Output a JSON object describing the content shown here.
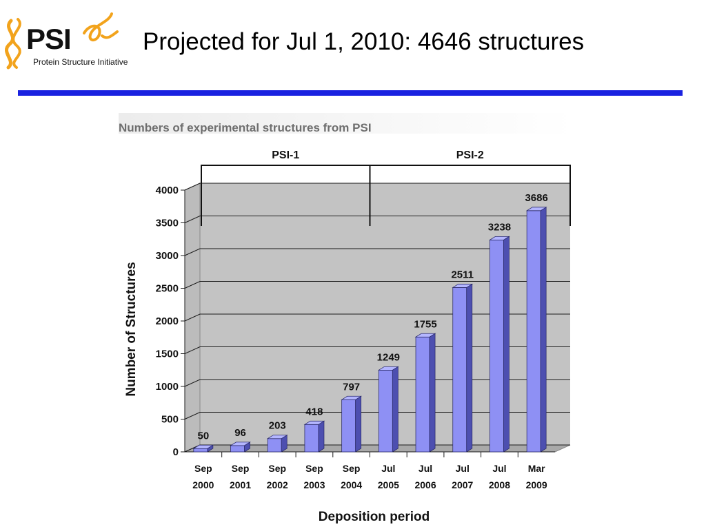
{
  "slide": {
    "title": "Projected for Jul 1, 2010:  4646 structures"
  },
  "logo": {
    "text": "PSI",
    "subtitle": "Protein Structure Initiative",
    "colors": {
      "accent": "#f2a31c",
      "text": "#111111"
    }
  },
  "chart_data": {
    "type": "bar",
    "title": "Numbers of experimental structures from PSI",
    "xlabel": "Deposition period",
    "ylabel": "Number of Structures",
    "categories": [
      [
        "Sep",
        "2000"
      ],
      [
        "Sep",
        "2001"
      ],
      [
        "Sep",
        "2002"
      ],
      [
        "Sep",
        "2003"
      ],
      [
        "Sep",
        "2004"
      ],
      [
        "Jul",
        "2005"
      ],
      [
        "Jul",
        "2006"
      ],
      [
        "Jul",
        "2007"
      ],
      [
        "Jul",
        "2008"
      ],
      [
        "Mar",
        "2009"
      ]
    ],
    "values": [
      50,
      96,
      203,
      418,
      797,
      1249,
      1755,
      2511,
      3238,
      3686
    ],
    "data_labels": [
      "50",
      "96",
      "203",
      "418",
      "797",
      "1249",
      "1755",
      "2511",
      "3238",
      "3686"
    ],
    "ylim": [
      0,
      4000
    ],
    "yticks": [
      0,
      500,
      1000,
      1500,
      2000,
      2500,
      3000,
      3500,
      4000
    ],
    "grid": true,
    "phases": [
      {
        "label": "PSI-1",
        "start_index": 0,
        "end_index": 5
      },
      {
        "label": "PSI-2",
        "start_index": 5,
        "end_index": 9
      }
    ],
    "colors": {
      "bar_front": "#8e90f4",
      "bar_side": "#4d4fb0",
      "bar_top": "#b4b6ff",
      "plot_back": "#c3c3c3",
      "plot_floor": "#a9a9a9",
      "slide_rule": "#1a22e0"
    }
  }
}
